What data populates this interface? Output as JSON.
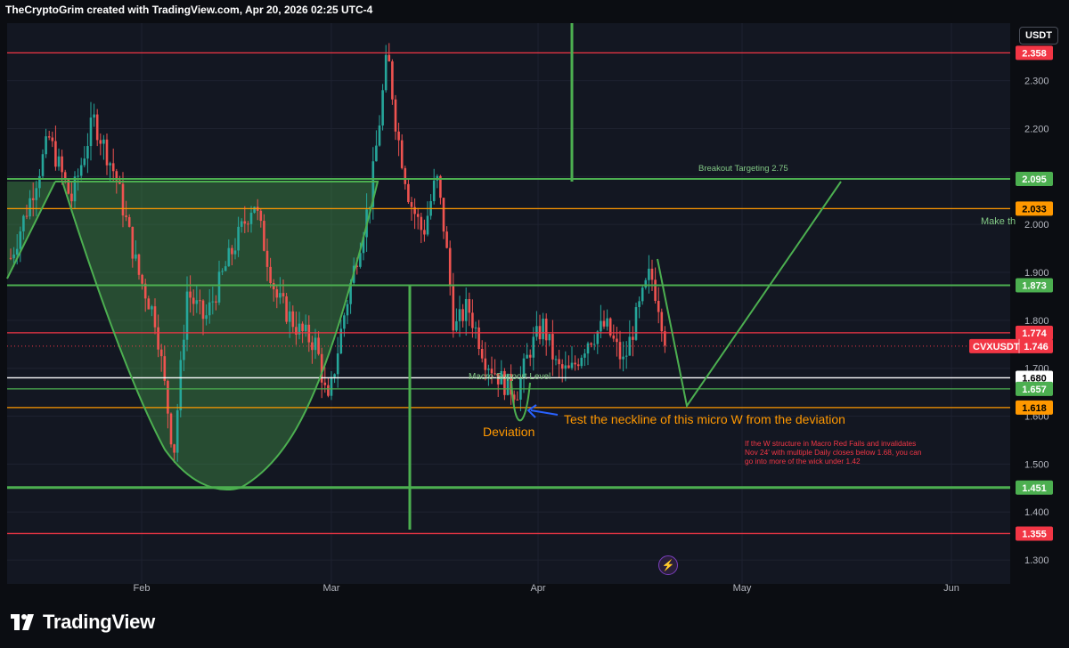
{
  "attribution": "TheCryptoGrim created with TradingView.com, Apr 20, 2026 02:25 UTC-4",
  "currency": "USDT",
  "brand": "TradingView",
  "icons": {
    "brand_logo": "tradingview-logo-icon",
    "alert": "lightning-bolt-icon",
    "arrow": "arrow-left-icon"
  },
  "colors": {
    "background": "#131722",
    "up_candle": "#26a69a",
    "down_candle": "#ef5350",
    "green_line": "#4caf50",
    "red_line": "#f23645",
    "orange_line": "#ff9800",
    "white_line": "#ffffff",
    "annotation_green": "#81c784",
    "annotation_orange": "#ff9800",
    "annotation_red": "#f23645",
    "arrow_blue": "#2962ff"
  },
  "chart_data": {
    "type": "candlestick",
    "symbol": "CVXUSDT",
    "last_price": 1.746,
    "x_ticks": [
      "Feb",
      "Mar",
      "Apr",
      "May",
      "Jun"
    ],
    "y_ticks": [
      1.3,
      1.4,
      1.5,
      1.6,
      1.7,
      1.8,
      1.9,
      2.0,
      2.1,
      2.2,
      2.3
    ],
    "y_tick_labels": [
      "1.300",
      "1.400",
      "1.500",
      "1.600",
      "1.700",
      "1.800",
      "1.900",
      "2.000",
      "2.100",
      "2.200",
      "2.300"
    ],
    "ylim": [
      1.25,
      2.42
    ],
    "grid": true,
    "horizontal_levels": [
      {
        "value": 2.358,
        "label": "2.358",
        "color": "#f23645",
        "badge_color": "#f23645"
      },
      {
        "value": 2.095,
        "label": "2.095",
        "color": "#4caf50",
        "badge_color": "#4caf50"
      },
      {
        "value": 2.033,
        "label": "2.033",
        "color": "#ff9800",
        "badge_color": "#ff9800"
      },
      {
        "value": 1.873,
        "label": "1.873",
        "color": "#4caf50",
        "badge_color": "#4caf50"
      },
      {
        "value": 1.774,
        "label": "1.774",
        "color": "#f23645",
        "badge_color": "#f23645"
      },
      {
        "value": 1.68,
        "label": "1.680",
        "color": "#ffffff",
        "badge_color": "#ffffff"
      },
      {
        "value": 1.657,
        "label": "1.657",
        "color": "#4caf50",
        "badge_color": "#4caf50"
      },
      {
        "value": 1.618,
        "label": "1.618",
        "color": "#ff9800",
        "badge_color": "#ff9800"
      },
      {
        "value": 1.451,
        "label": "1.451",
        "color": "#4caf50",
        "badge_color": "#4caf50"
      },
      {
        "value": 1.355,
        "label": "1.355",
        "color": "#f23645",
        "badge_color": "#f23645"
      }
    ],
    "current_price_badge": {
      "symbol": "CVXUSDT",
      "value": "1.746"
    },
    "annotations": {
      "breakout": "Breakout Targeting 2.75",
      "make": "Make th",
      "macro_support": "Macro Support Level",
      "deviation": "Deviation",
      "neckline": "Test the neckline of this micro W from the deviation",
      "invalidation": [
        "If the W structure in Macro Red Fails and invalidates",
        "Nov 24' with multiple Daily closes below 1.68, you can",
        "go into more of the wick under 1.42"
      ]
    }
  }
}
